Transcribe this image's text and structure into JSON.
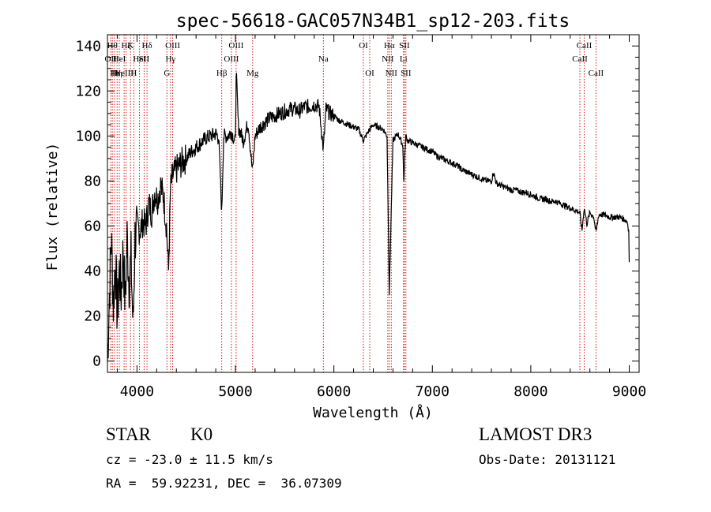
{
  "chart_data": {
    "type": "line",
    "title": "spec-56618-GAC057N34B1_sp12-203.fits",
    "xlabel": "Wavelength (Å)",
    "ylabel": "Flux (relative)",
    "xlim": [
      3700,
      9100
    ],
    "ylim": [
      -5,
      145
    ],
    "xticks": [
      4000,
      5000,
      6000,
      7000,
      8000,
      9000
    ],
    "yticks": [
      0,
      20,
      40,
      60,
      80,
      100,
      120,
      140
    ],
    "grid": false,
    "series": [
      {
        "name": "flux",
        "x": [
          3700,
          3720,
          3740,
          3760,
          3780,
          3800,
          3820,
          3840,
          3860,
          3880,
          3900,
          3920,
          3940,
          3960,
          3980,
          4000,
          4030,
          4060,
          4090,
          4120,
          4150,
          4180,
          4210,
          4240,
          4270,
          4300,
          4320,
          4340,
          4360,
          4400,
          4450,
          4500,
          4550,
          4600,
          4650,
          4700,
          4750,
          4800,
          4830,
          4861,
          4880,
          4920,
          4960,
          5000,
          5007,
          5030,
          5080,
          5130,
          5172,
          5200,
          5250,
          5300,
          5350,
          5400,
          5450,
          5500,
          5550,
          5600,
          5650,
          5700,
          5750,
          5800,
          5850,
          5893,
          5920,
          5960,
          6000,
          6050,
          6100,
          6150,
          6200,
          6250,
          6300,
          6350,
          6400,
          6450,
          6500,
          6540,
          6563,
          6580,
          6600,
          6650,
          6700,
          6710,
          6730,
          6750,
          6800,
          6850,
          6900,
          6950,
          7000,
          7050,
          7100,
          7150,
          7200,
          7250,
          7300,
          7350,
          7400,
          7450,
          7500,
          7550,
          7600,
          7620,
          7650,
          7700,
          7750,
          7800,
          7850,
          7900,
          7950,
          8000,
          8050,
          8100,
          8150,
          8200,
          8250,
          8300,
          8350,
          8400,
          8450,
          8498,
          8520,
          8542,
          8570,
          8600,
          8640,
          8662,
          8690,
          8720,
          8750,
          8800,
          8850,
          8900,
          8950,
          8980,
          8995,
          9000
        ],
        "values": [
          0,
          30,
          55,
          25,
          45,
          20,
          40,
          30,
          50,
          25,
          55,
          35,
          45,
          15,
          55,
          60,
          58,
          62,
          60,
          70,
          66,
          75,
          72,
          78,
          73,
          60,
          40,
          76,
          82,
          85,
          88,
          90,
          93,
          95,
          97,
          99,
          100,
          101,
          99,
          66,
          100,
          100,
          102,
          97,
          130,
          104,
          98,
          106,
          84,
          100,
          104,
          106,
          108,
          109,
          110,
          111,
          112,
          112,
          111,
          113,
          113,
          114,
          113,
          94,
          112,
          110,
          109,
          107,
          106,
          105,
          104,
          103,
          98,
          102,
          105,
          104,
          103,
          100,
          30,
          62,
          98,
          101,
          96,
          80,
          100,
          98,
          97,
          96,
          95,
          94,
          93,
          91,
          90,
          89,
          88,
          87,
          85,
          84,
          83,
          82,
          81,
          80,
          80,
          84,
          79,
          78,
          77,
          76,
          76,
          75,
          75,
          74,
          73,
          72,
          72,
          71,
          71,
          70,
          69,
          68,
          67,
          66,
          58,
          68,
          61,
          66,
          64,
          57,
          65,
          65,
          65,
          64,
          64,
          64,
          63,
          62,
          58,
          44
        ]
      }
    ],
    "lines": [
      {
        "x": 3734,
        "label": "OII",
        "row": 2
      },
      {
        "x": 3750,
        "label": "Hθ",
        "row": 1
      },
      {
        "x": 3771,
        "label": "Hι",
        "row": 3
      },
      {
        "x": 3798,
        "label": "Hη",
        "row": 3
      },
      {
        "x": 3820,
        "label": "HeI",
        "row": 2
      },
      {
        "x": 3869,
        "label": "NeIII",
        "row": 3
      },
      {
        "x": 3889,
        "label": "Hζ",
        "row": 1
      },
      {
        "x": 3934,
        "label": "K",
        "row": 1
      },
      {
        "x": 3968,
        "label": "H",
        "row": 3
      },
      {
        "x": 4026,
        "label": "HeI",
        "row": 2
      },
      {
        "x": 4072,
        "label": "SII",
        "row": 2
      },
      {
        "x": 4102,
        "label": "Hδ",
        "row": 1
      },
      {
        "x": 4304,
        "label": "G",
        "row": 3
      },
      {
        "x": 4341,
        "label": "Hγ",
        "row": 2
      },
      {
        "x": 4363,
        "label": "OIII",
        "row": 1
      },
      {
        "x": 4861,
        "label": "Hβ",
        "row": 3
      },
      {
        "x": 4959,
        "label": "OIII",
        "row": 2
      },
      {
        "x": 5007,
        "label": "OIII",
        "row": 1
      },
      {
        "x": 5175,
        "label": "Mg",
        "row": 3
      },
      {
        "x": 5893,
        "label": "Na",
        "row": 2
      },
      {
        "x": 6300,
        "label": "OI",
        "row": 1
      },
      {
        "x": 6364,
        "label": "OI",
        "row": 3
      },
      {
        "x": 6548,
        "label": "NII",
        "row": 2
      },
      {
        "x": 6563,
        "label": "Hα",
        "row": 1
      },
      {
        "x": 6583,
        "label": "NII",
        "row": 3
      },
      {
        "x": 6707,
        "label": "Li",
        "row": 2
      },
      {
        "x": 6716,
        "label": "SII",
        "row": 1
      },
      {
        "x": 6731,
        "label": "SII",
        "row": 3
      },
      {
        "x": 8498,
        "label": "CaII",
        "row": 2
      },
      {
        "x": 8542,
        "label": "CaII",
        "row": 1
      },
      {
        "x": 8662,
        "label": "CaII",
        "row": 3
      }
    ]
  },
  "info": {
    "class": "STAR",
    "subclass": "K0",
    "survey": "LAMOST DR3",
    "cz": "cz = -23.0 ± 11.5 km/s",
    "obsdate": "Obs-Date: 20131121",
    "radec": "RA =  59.92231, DEC =  36.07309"
  },
  "colors": {
    "spectrum": "#000000",
    "line_markers": "#cc0000",
    "axes": "#000000"
  }
}
